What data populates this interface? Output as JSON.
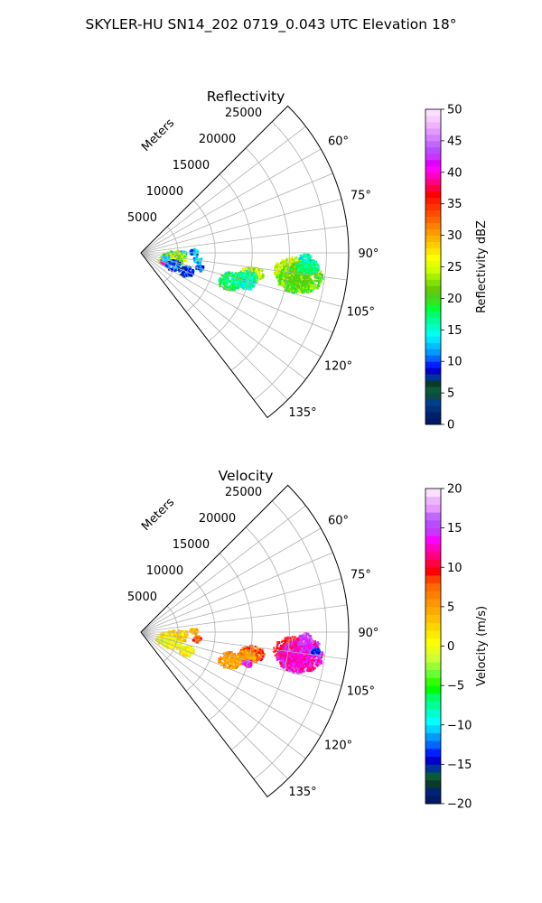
{
  "figure_title": "SKYLER-HU  SN14_202  0719_0.043 UTC Elevation 18°",
  "chart_data": [
    {
      "type": "sector_ppi",
      "title": "Reflectivity",
      "range_label": "Meters",
      "range_ticks": [
        5000,
        10000,
        15000,
        20000,
        25000
      ],
      "range_tick_labels": [
        "5000",
        "10000",
        "15000",
        "20000",
        "25000"
      ],
      "range_max": 28000,
      "azimuth_range_deg": [
        45,
        142.5
      ],
      "azimuth_ticks": [
        60,
        75,
        90,
        105,
        120,
        135
      ],
      "azimuth_tick_labels": [
        "60°",
        "75°",
        "90°",
        "105°",
        "120°",
        "135°"
      ],
      "grid": true,
      "colorbar": {
        "label": "Reflectivity dBZ",
        "min": 0,
        "max": 50,
        "ticks": [
          0,
          5,
          10,
          15,
          20,
          25,
          30,
          35,
          40,
          45,
          50
        ],
        "tick_labels": [
          "0",
          "5",
          "10",
          "15",
          "20",
          "25",
          "30",
          "35",
          "40",
          "45",
          "50"
        ],
        "colors": [
          "#001a66",
          "#00206e",
          "#003080",
          "#00408a",
          "#0d4a4a",
          "#0a5a36",
          "#0a3a2a",
          "#003399",
          "#0000cc",
          "#0020ff",
          "#0066ff",
          "#0099ff",
          "#00bfff",
          "#00e5ff",
          "#00ffee",
          "#00ffc0",
          "#00ff99",
          "#00ff66",
          "#00ff33",
          "#33e51a",
          "#4dd11a",
          "#66cc00",
          "#80e000",
          "#a6f000",
          "#ccff00",
          "#e5ff00",
          "#ffff00",
          "#ffe600",
          "#ffcc00",
          "#ffb300",
          "#ff9900",
          "#ff8000",
          "#ff6600",
          "#ff4d00",
          "#ff3300",
          "#ff1a00",
          "#ff0000",
          "#ff0040",
          "#ff0080",
          "#ff00bf",
          "#ff00ff",
          "#e000ff",
          "#cc33ff",
          "#b84dff",
          "#c266ff",
          "#d580ff",
          "#e599ff",
          "#f0b3ff",
          "#f5ccff",
          "#fae0ff"
        ]
      },
      "echoes": [
        {
          "az": 96.5,
          "range": 20500,
          "value": 25,
          "size": 2300
        },
        {
          "az": 98.5,
          "range": 21500,
          "value": 21,
          "size": 2700
        },
        {
          "az": 94.5,
          "range": 22500,
          "value": 17,
          "size": 1300
        },
        {
          "az": 91.5,
          "range": 22000,
          "value": 15,
          "size": 700
        },
        {
          "az": 101,
          "range": 15000,
          "value": 24,
          "size": 1500
        },
        {
          "az": 103,
          "range": 14500,
          "value": 17,
          "size": 1200
        },
        {
          "az": 107,
          "range": 12500,
          "value": 17,
          "size": 1500
        },
        {
          "az": 106,
          "range": 14800,
          "value": 15,
          "size": 900
        },
        {
          "az": 96,
          "range": 7500,
          "value": 14,
          "size": 500
        },
        {
          "az": 91.5,
          "range": 5500,
          "value": 14,
          "size": 600
        },
        {
          "az": 88,
          "range": 7000,
          "value": 12,
          "size": 500
        },
        {
          "az": 92,
          "range": 4000,
          "value": 14,
          "size": 500
        },
        {
          "az": 98,
          "range": 4500,
          "value": 22,
          "size": 1300
        },
        {
          "az": 104,
          "range": 3400,
          "value": 24,
          "size": 1000
        },
        {
          "az": 109,
          "range": 3200,
          "value": 40,
          "size": 450
        },
        {
          "az": 110,
          "range": 4500,
          "value": 10,
          "size": 900
        },
        {
          "az": 112,
          "range": 6500,
          "value": 10,
          "size": 900
        },
        {
          "az": 103.5,
          "range": 8000,
          "value": 10,
          "size": 500
        },
        {
          "az": 100,
          "range": 3200,
          "value": 14,
          "size": 500
        }
      ]
    },
    {
      "type": "sector_ppi",
      "title": "Velocity",
      "range_label": "Meters",
      "range_ticks": [
        5000,
        10000,
        15000,
        20000,
        25000
      ],
      "range_tick_labels": [
        "5000",
        "10000",
        "15000",
        "20000",
        "25000"
      ],
      "range_max": 28000,
      "azimuth_range_deg": [
        45,
        142.5
      ],
      "azimuth_ticks": [
        60,
        75,
        90,
        105,
        120,
        135
      ],
      "azimuth_tick_labels": [
        "60°",
        "75°",
        "90°",
        "105°",
        "120°",
        "135°"
      ],
      "grid": true,
      "colorbar": {
        "label": "Velocity (m/s)",
        "min": -20,
        "max": 20,
        "ticks": [
          -20,
          -15,
          -10,
          -5,
          0,
          5,
          10,
          15,
          20
        ],
        "tick_labels": [
          "−20",
          "−15",
          "−10",
          "−5",
          "0",
          "5",
          "10",
          "15",
          "20"
        ],
        "colors": [
          "#001a66",
          "#002277",
          "#0a3a2a",
          "#0a5a36",
          "#003399",
          "#0000cc",
          "#0020ff",
          "#0066ff",
          "#0099ff",
          "#00d5ff",
          "#00ffff",
          "#00ffcc",
          "#00ff99",
          "#00ff66",
          "#00ff00",
          "#33ff00",
          "#66ff33",
          "#99ff33",
          "#ccff33",
          "#e5ff1a",
          "#ffff00",
          "#ffea00",
          "#ffd500",
          "#ffbf00",
          "#ffaa00",
          "#ff9500",
          "#ff8000",
          "#ff6a00",
          "#ff4000",
          "#ff0000",
          "#ff0040",
          "#ff0080",
          "#ff00bf",
          "#ff00ff",
          "#cc33ff",
          "#b84dff",
          "#c266ff",
          "#e599ff",
          "#f0b3ff",
          "#fae0ff"
        ]
      },
      "echoes": [
        {
          "az": 96.5,
          "range": 20500,
          "value": 10,
          "size": 2300
        },
        {
          "az": 98.5,
          "range": 21500,
          "value": 13,
          "size": 2700
        },
        {
          "az": 94.5,
          "range": 22500,
          "value": 14,
          "size": 1300
        },
        {
          "az": 91.5,
          "range": 22000,
          "value": 15,
          "size": 700
        },
        {
          "az": 96,
          "range": 23500,
          "value": -13,
          "size": 500
        },
        {
          "az": 101,
          "range": 15000,
          "value": 8,
          "size": 1500
        },
        {
          "az": 103,
          "range": 14500,
          "value": 5,
          "size": 1200
        },
        {
          "az": 107,
          "range": 12500,
          "value": 5,
          "size": 1400
        },
        {
          "az": 106,
          "range": 14800,
          "value": 14,
          "size": 600
        },
        {
          "az": 96,
          "range": 7500,
          "value": 8,
          "size": 500
        },
        {
          "az": 91.5,
          "range": 5500,
          "value": 3,
          "size": 600
        },
        {
          "az": 88,
          "range": 7000,
          "value": 4,
          "size": 500
        },
        {
          "az": 98,
          "range": 4500,
          "value": 3,
          "size": 1300
        },
        {
          "az": 104,
          "range": 3400,
          "value": 1,
          "size": 1200
        },
        {
          "az": 109,
          "range": 3500,
          "value": 0,
          "size": 700
        },
        {
          "az": 110,
          "range": 4500,
          "value": 0,
          "size": 900
        },
        {
          "az": 112,
          "range": 6500,
          "value": 1,
          "size": 900
        }
      ]
    }
  ]
}
